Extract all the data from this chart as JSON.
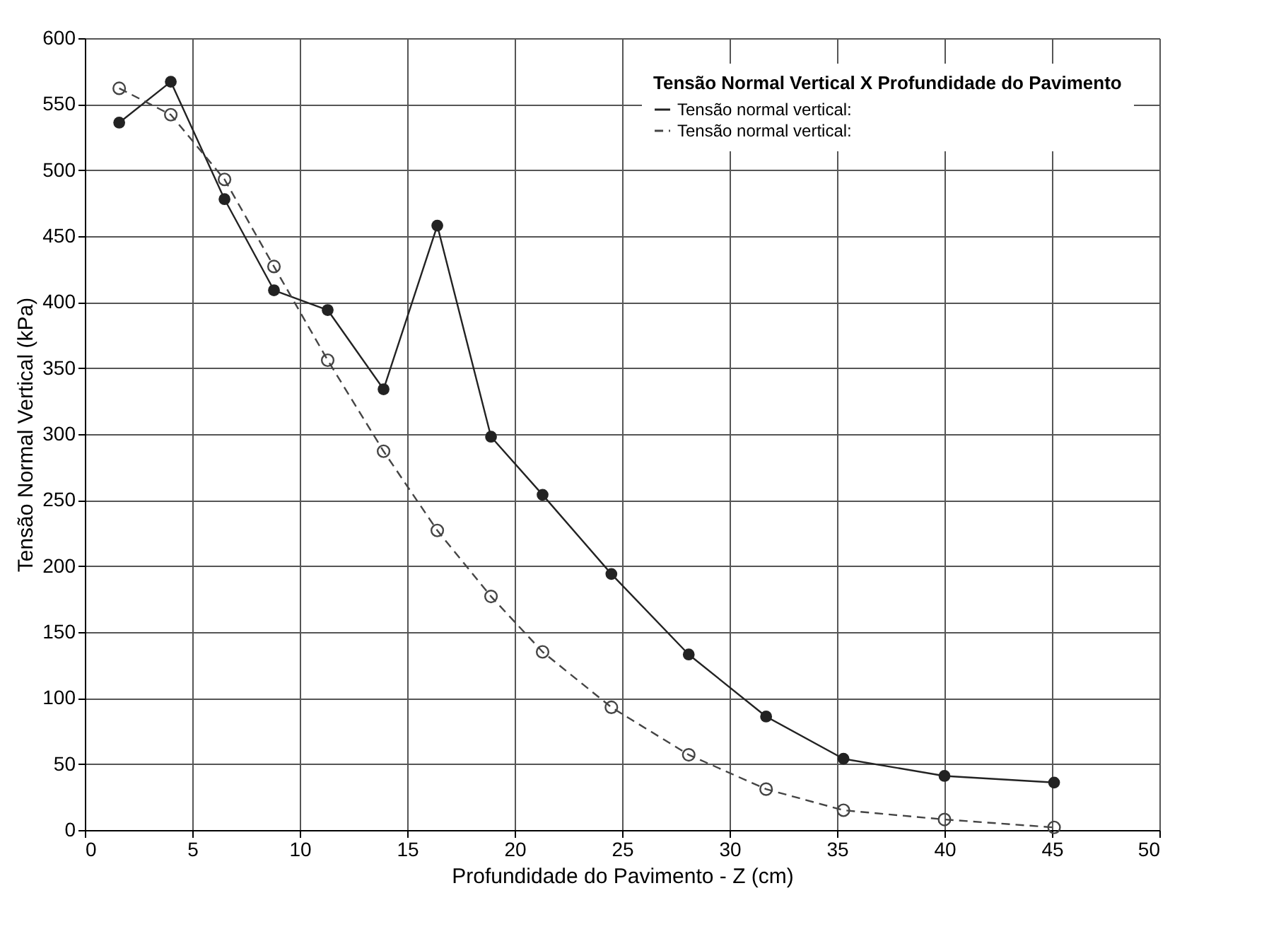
{
  "chart_data": {
    "type": "line",
    "xlabel": "Profundidade do Pavimento - Z (cm)",
    "ylabel": "Tensão Normal Vertical (kPa)",
    "legend_title": "Tensão Normal Vertical X Profundidade do Pavimento",
    "xlim": [
      0,
      50
    ],
    "xticks": [
      0,
      5,
      10,
      15,
      20,
      25,
      30,
      35,
      40,
      45,
      50
    ],
    "ylim": [
      0,
      600
    ],
    "yticks": [
      0,
      50,
      100,
      150,
      200,
      250,
      300,
      350,
      400,
      450,
      500,
      550,
      600
    ],
    "grid": true,
    "legend": "top right",
    "marker": "circle",
    "x": [
      1.6,
      4.0,
      6.5,
      8.8,
      11.3,
      13.9,
      16.4,
      18.9,
      21.3,
      24.5,
      28.1,
      31.7,
      35.3,
      40,
      45.1
    ],
    "series": [
      {
        "name": "Tensão normal vertical:",
        "color": "#222222",
        "line_style": "solid",
        "values": [
          536,
          567,
          478,
          409,
          394,
          334,
          458,
          298,
          254,
          194,
          133,
          86,
          54,
          41,
          36
        ]
      },
      {
        "name": "Tensão normal vertical:",
        "color": "#444444",
        "line_style": "dashed",
        "values": [
          562,
          542,
          493,
          427,
          356,
          287,
          227,
          177,
          135,
          93,
          57,
          31,
          15,
          8,
          2
        ]
      }
    ]
  }
}
